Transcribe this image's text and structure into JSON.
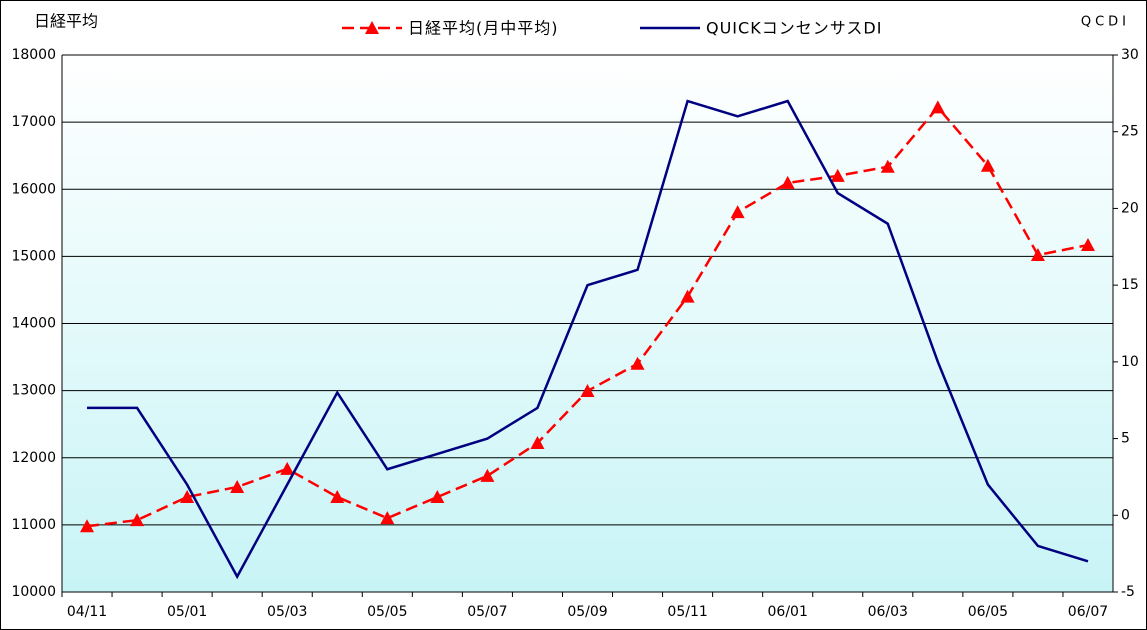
{
  "chart_data": {
    "type": "line",
    "y_label": "日経平均",
    "y2_label": "QCDI",
    "categories": [
      "04/11",
      null,
      "05/01",
      null,
      "05/03",
      null,
      "05/05",
      null,
      "05/07",
      null,
      "05/09",
      null,
      "05/11",
      null,
      "06/01",
      null,
      "06/03",
      null,
      "06/05",
      null,
      "06/07"
    ],
    "series": [
      {
        "name": "日経平均(月中平均)",
        "color": "#ff0000",
        "marker": "triangle",
        "dash": true,
        "values": [
          10980,
          11070,
          11415,
          11565,
          11835,
          11415,
          11100,
          11415,
          11730,
          12220,
          12995,
          13400,
          14400,
          15660,
          16095,
          16200,
          16335,
          17220,
          16350,
          15020,
          15170
        ]
      },
      {
        "name": "QUICKコンセンサスDI",
        "color": "#000080",
        "axis": "y2",
        "values": [
          7,
          7,
          2,
          -4,
          2,
          8,
          3,
          4,
          5,
          7,
          15,
          16,
          27,
          26,
          27,
          21,
          19,
          10,
          2,
          -2,
          -3
        ]
      }
    ],
    "ylim": [
      10000,
      18000
    ],
    "yticks": [
      10000,
      11000,
      12000,
      13000,
      14000,
      15000,
      16000,
      17000,
      18000
    ],
    "y2lim": [
      -5,
      30
    ],
    "y2ticks": [
      -5,
      0,
      5,
      10,
      15,
      20,
      25,
      30
    ],
    "grid": true
  }
}
